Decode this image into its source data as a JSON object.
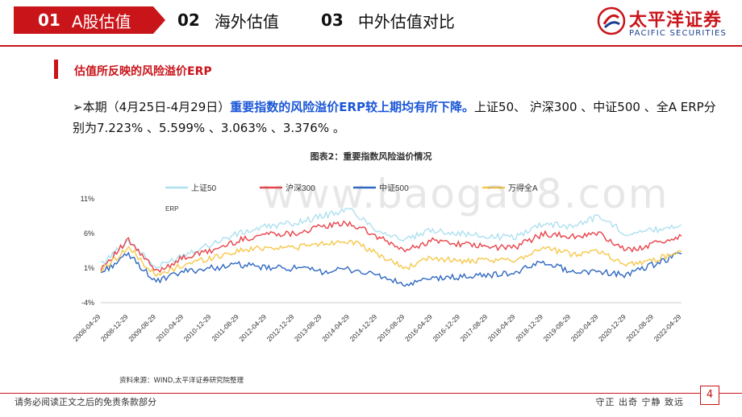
{
  "header": {
    "tabs": [
      {
        "num": "01",
        "label": "A股估值"
      },
      {
        "num": "02",
        "label": "海外估值"
      },
      {
        "num": "03",
        "label": "中外估值对比"
      }
    ],
    "logo_cn": "太平洋证券",
    "logo_en": "PACIFIC SECURITIES"
  },
  "section_title": "估值所反映的风险溢价ERP",
  "body": {
    "prefix": "➢本期（4月25日-4月29日）",
    "highlight": "重要指数的风险溢价ERP较上期均有所下降。",
    "rest": "上证50、 沪深300 、中证500 、全A ERP分别为7.223% 、5.599% 、3.063% 、3.376% 。"
  },
  "watermark": "www.baogao8.com",
  "colors": {
    "accent": "#c9141a",
    "highlight": "#1a56d6"
  },
  "chart_data": {
    "type": "line",
    "title": "图表2：重要指数风险溢价情况",
    "inner_label": "ERP",
    "ylim": [
      -4,
      11
    ],
    "yticks": [
      11,
      6,
      1,
      -4
    ],
    "ytick_labels": [
      "11%",
      "6%",
      "1%",
      "-4%"
    ],
    "xticks": [
      "2008-04-29",
      "2008-12-29",
      "2009-08-29",
      "2010-04-29",
      "2010-12-29",
      "2011-08-29",
      "2012-04-29",
      "2012-12-29",
      "2013-08-29",
      "2014-04-29",
      "2014-12-29",
      "2015-08-29",
      "2016-04-29",
      "2016-12-29",
      "2017-08-29",
      "2018-04-29",
      "2018-12-29",
      "2019-08-29",
      "2020-04-29",
      "2020-12-29",
      "2021-08-29",
      "2022-04-29"
    ],
    "x_dates": [
      "2008-04",
      "2008-12",
      "2009-08",
      "2010-04",
      "2010-12",
      "2011-08",
      "2012-04",
      "2012-12",
      "2013-08",
      "2014-04",
      "2014-12",
      "2015-08",
      "2016-04",
      "2016-12",
      "2017-08",
      "2018-04",
      "2018-12",
      "2019-08",
      "2020-04",
      "2020-12",
      "2021-08",
      "2022-04"
    ],
    "series": [
      {
        "name": "上证50",
        "color": "#aee0f0",
        "values": [
          1.5,
          5.0,
          1.0,
          3.0,
          4.5,
          6.0,
          7.0,
          7.5,
          8.5,
          9.5,
          6.5,
          5.0,
          6.5,
          6.0,
          5.5,
          5.5,
          7.5,
          7.0,
          8.5,
          6.0,
          6.5,
          7.223
        ]
      },
      {
        "name": "沪深300",
        "color": "#e8424a",
        "values": [
          1.0,
          5.0,
          0.5,
          2.5,
          3.5,
          5.0,
          6.0,
          6.0,
          7.0,
          7.5,
          5.5,
          3.5,
          5.0,
          4.5,
          4.0,
          4.0,
          6.0,
          5.5,
          6.0,
          3.5,
          4.5,
          5.599
        ]
      },
      {
        "name": "中证500",
        "color": "#2f68c2",
        "values": [
          0.3,
          3.0,
          -1.0,
          0.5,
          1.0,
          1.5,
          1.0,
          1.0,
          0.5,
          0.8,
          0.0,
          -1.5,
          -0.5,
          -0.3,
          0.0,
          0.3,
          2.0,
          0.5,
          0.5,
          0.0,
          1.5,
          3.063
        ]
      },
      {
        "name": "万得全A",
        "color": "#f5c84a",
        "values": [
          0.6,
          4.0,
          -0.2,
          1.5,
          2.5,
          3.5,
          4.0,
          4.0,
          4.5,
          5.0,
          3.0,
          1.0,
          2.5,
          2.0,
          2.0,
          2.2,
          4.0,
          3.0,
          3.5,
          1.5,
          2.2,
          3.376
        ]
      }
    ],
    "legend_position": "top"
  },
  "source": "资料来源：WIND,太平洋证券研究院整理",
  "footer": {
    "disclaimer": "请务必阅读正文之后的免责条款部分",
    "motto": "守正 出奇 宁静 致远",
    "page": "4"
  }
}
